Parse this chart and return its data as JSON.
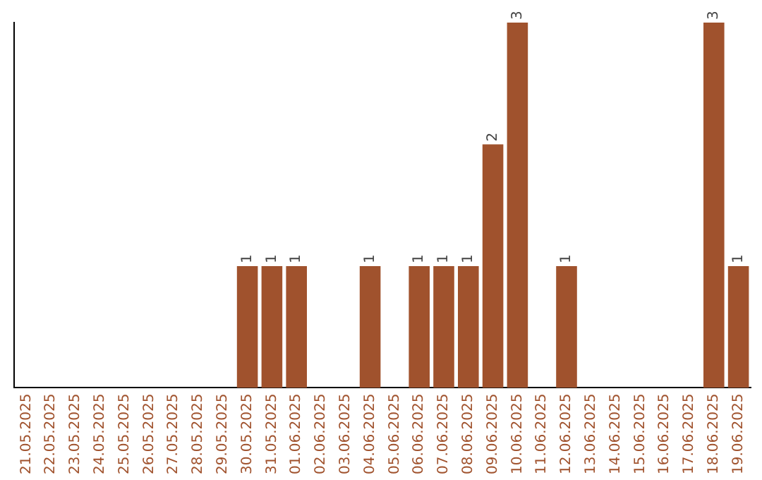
{
  "chart_data": {
    "type": "bar",
    "categories": [
      "21.05.2025",
      "22.05.2025",
      "23.05.2025",
      "24.05.2025",
      "25.05.2025",
      "26.05.2025",
      "27.05.2025",
      "28.05.2025",
      "29.05.2025",
      "30.05.2025",
      "31.05.2025",
      "01.06.2025",
      "02.06.2025",
      "03.06.2025",
      "04.06.2025",
      "05.06.2025",
      "06.06.2025",
      "07.06.2025",
      "08.06.2025",
      "09.06.2025",
      "10.06.2025",
      "11.06.2025",
      "12.06.2025",
      "13.06.2025",
      "14.06.2025",
      "15.06.2025",
      "16.06.2025",
      "17.06.2025",
      "18.06.2025",
      "19.06.2025"
    ],
    "values": [
      0,
      0,
      0,
      0,
      0,
      0,
      0,
      0,
      0,
      1,
      1,
      1,
      0,
      0,
      1,
      0,
      1,
      1,
      1,
      2,
      3,
      0,
      1,
      0,
      0,
      0,
      0,
      0,
      3,
      1
    ],
    "value_labels": [
      null,
      null,
      null,
      null,
      null,
      null,
      null,
      null,
      null,
      "1",
      "1",
      "1",
      null,
      null,
      "1",
      null,
      "1",
      "1",
      "1",
      "2",
      "3",
      null,
      "1",
      null,
      null,
      null,
      null,
      null,
      "3",
      "1"
    ],
    "color": "#a0522d",
    "ylim": [
      0,
      3
    ],
    "tick_labels": "x",
    "grid": false,
    "legend": false
  }
}
